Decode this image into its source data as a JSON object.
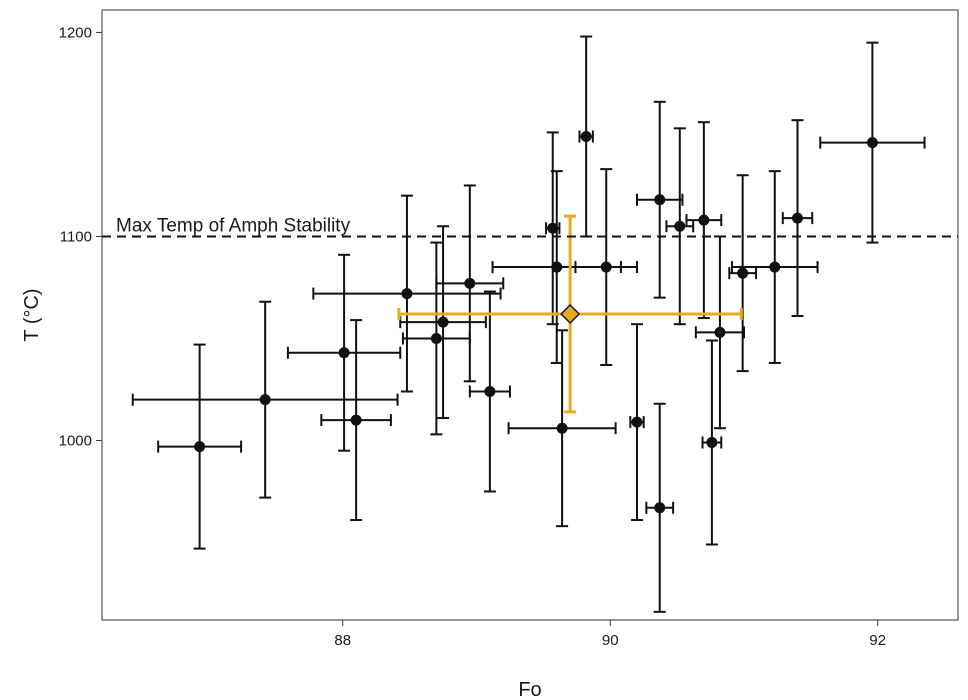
{
  "chart_data": {
    "type": "scatter",
    "xlabel": "Fo",
    "ylabel": "T (°C)",
    "xlim": [
      86.2,
      92.6
    ],
    "ylim": [
      912,
      1211
    ],
    "x_ticks": [
      88,
      90,
      92
    ],
    "y_ticks": [
      1000,
      1100,
      1200
    ],
    "grid": false,
    "reference_line": {
      "y": 1100,
      "label": "Max Temp of Amph Stability",
      "style": "dashed"
    },
    "points": [
      {
        "x": 86.93,
        "y": 997,
        "xerr": 0.31,
        "yerr": 50
      },
      {
        "x": 87.42,
        "y": 1020,
        "xerr": 0.99,
        "yerr": 48
      },
      {
        "x": 88.01,
        "y": 1043,
        "xerr": 0.42,
        "yerr": 48
      },
      {
        "x": 88.1,
        "y": 1010,
        "xerr": 0.26,
        "yerr": 49
      },
      {
        "x": 88.48,
        "y": 1072,
        "xerr": 0.7,
        "yerr": 48
      },
      {
        "x": 88.7,
        "y": 1050,
        "xerr": 0.25,
        "yerr": 47
      },
      {
        "x": 88.75,
        "y": 1058,
        "xerr": 0.32,
        "yerr": 47
      },
      {
        "x": 88.95,
        "y": 1077,
        "xerr": 0.25,
        "yerr": 48
      },
      {
        "x": 89.1,
        "y": 1024,
        "xerr": 0.15,
        "yerr": 49
      },
      {
        "x": 89.57,
        "y": 1104,
        "xerr": 0.05,
        "yerr": 47
      },
      {
        "x": 89.6,
        "y": 1085,
        "xerr": 0.48,
        "yerr": 47
      },
      {
        "x": 89.64,
        "y": 1006,
        "xerr": 0.4,
        "yerr": 48
      },
      {
        "x": 89.82,
        "y": 1149,
        "xerr": 0.05,
        "yerr": 49
      },
      {
        "x": 89.97,
        "y": 1085,
        "xerr": 0.23,
        "yerr": 48
      },
      {
        "x": 90.2,
        "y": 1009,
        "xerr": 0.05,
        "yerr": 48
      },
      {
        "x": 90.37,
        "y": 1118,
        "xerr": 0.17,
        "yerr": 48
      },
      {
        "x": 90.37,
        "y": 967,
        "xerr": 0.1,
        "yerr": 51
      },
      {
        "x": 90.52,
        "y": 1105,
        "xerr": 0.1,
        "yerr": 48
      },
      {
        "x": 90.7,
        "y": 1108,
        "xerr": 0.13,
        "yerr": 48
      },
      {
        "x": 90.76,
        "y": 999,
        "xerr": 0.07,
        "yerr": 50
      },
      {
        "x": 90.82,
        "y": 1053,
        "xerr": 0.18,
        "yerr": 47
      },
      {
        "x": 90.99,
        "y": 1082,
        "xerr": 0.1,
        "yerr": 48
      },
      {
        "x": 91.23,
        "y": 1085,
        "xerr": 0.32,
        "yerr": 47
      },
      {
        "x": 91.4,
        "y": 1109,
        "xerr": 0.11,
        "yerr": 48
      },
      {
        "x": 91.96,
        "y": 1146,
        "xerr": 0.39,
        "yerr": 49
      }
    ],
    "highlight": {
      "x": 89.7,
      "y": 1062,
      "xerr": 1.28,
      "yerr": 48,
      "color": "#E6AC1F",
      "edge_color": "#1a1a1a",
      "marker": "diamond"
    },
    "colors": {
      "points": "#111111",
      "highlight": "#E6AC1F",
      "reference_line": "#111111",
      "frame": "#333333"
    }
  }
}
